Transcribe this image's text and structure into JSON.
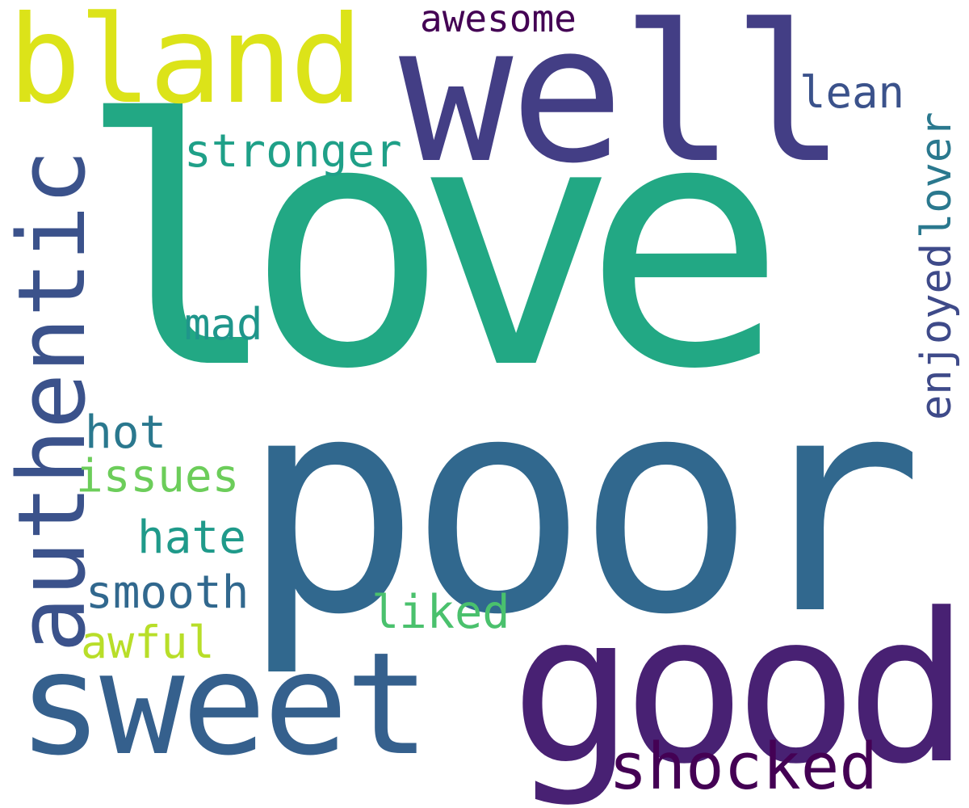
{
  "words": {
    "love": {
      "text": "love",
      "color": "#22a884"
    },
    "poor": {
      "text": "poor",
      "color": "#31688e"
    },
    "well": {
      "text": "well",
      "color": "#433e85"
    },
    "good": {
      "text": "good",
      "color": "#482173"
    },
    "bland": {
      "text": "bland",
      "color": "#dce319"
    },
    "sweet": {
      "text": "sweet",
      "color": "#35608d"
    },
    "authentic": {
      "text": "authentic",
      "color": "#3b528b"
    },
    "shocked": {
      "text": "shocked",
      "color": "#440154"
    },
    "stronger": {
      "text": "stronger",
      "color": "#1fa088"
    },
    "awesome": {
      "text": "awesome",
      "color": "#440154"
    },
    "lean": {
      "text": "lean",
      "color": "#3b528b"
    },
    "lover": {
      "text": "lover",
      "color": "#2a788e"
    },
    "enjoyed": {
      "text": "enjoyed",
      "color": "#3e4a89"
    },
    "mad": {
      "text": "mad",
      "color": "#1f968b"
    },
    "hot": {
      "text": "hot",
      "color": "#2a788e"
    },
    "issues": {
      "text": "issues",
      "color": "#6ccd5a"
    },
    "hate": {
      "text": "hate",
      "color": "#1f9a8a"
    },
    "smooth": {
      "text": "smooth",
      "color": "#31688e"
    },
    "awful": {
      "text": "awful",
      "color": "#b8de29"
    },
    "liked": {
      "text": "liked",
      "color": "#4ac16d"
    }
  }
}
